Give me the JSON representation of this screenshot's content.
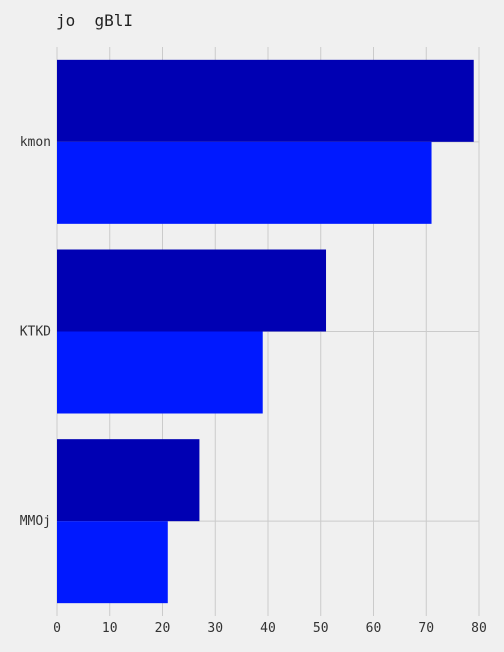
{
  "chart_data": {
    "type": "bar",
    "orientation": "horizontal",
    "title": "jo  gBlI",
    "categories": [
      "kmon",
      "KTKD",
      "MMOj"
    ],
    "series": [
      {
        "values": [
          79,
          51,
          27
        ],
        "color": "#0000b3"
      },
      {
        "values": [
          71,
          39,
          21
        ],
        "color": "#0019ff"
      }
    ],
    "xlim": [
      0,
      80
    ],
    "x_ticks": [
      0,
      10,
      20,
      30,
      40,
      50,
      60,
      70,
      80
    ],
    "grid": true,
    "xlabel": "",
    "ylabel": ""
  },
  "colors": {
    "background": "#f0f0f0",
    "grid": "#cbcbcb"
  }
}
